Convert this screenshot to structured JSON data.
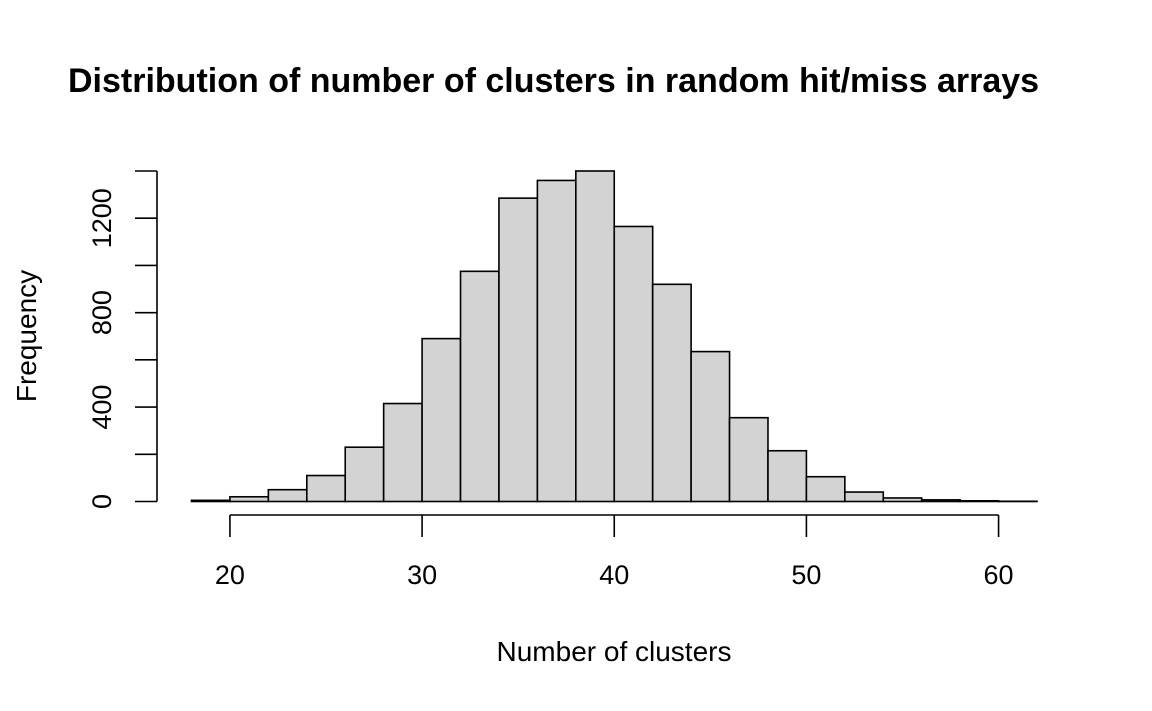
{
  "chart_data": {
    "type": "bar",
    "title": "Distribution of number of clusters in random hit/miss arrays",
    "xlabel": "Number of clusters",
    "ylabel": "Frequency",
    "bin_edges": [
      18,
      20,
      22,
      24,
      26,
      28,
      30,
      32,
      34,
      36,
      38,
      40,
      42,
      44,
      46,
      48,
      50,
      52,
      54,
      56,
      58,
      60,
      62
    ],
    "values": [
      5,
      20,
      50,
      110,
      230,
      415,
      690,
      975,
      1285,
      1360,
      1400,
      1165,
      920,
      635,
      355,
      215,
      105,
      40,
      15,
      7,
      3,
      1
    ],
    "xlim": [
      18,
      62
    ],
    "ylim": [
      0,
      1400
    ],
    "x_ticks": [
      20,
      30,
      40,
      50,
      60
    ],
    "y_ticks": [
      0,
      400,
      800,
      1200
    ],
    "y_minor_ticks": [
      200,
      600,
      1000,
      1400
    ],
    "grid": false,
    "legend": "none"
  }
}
